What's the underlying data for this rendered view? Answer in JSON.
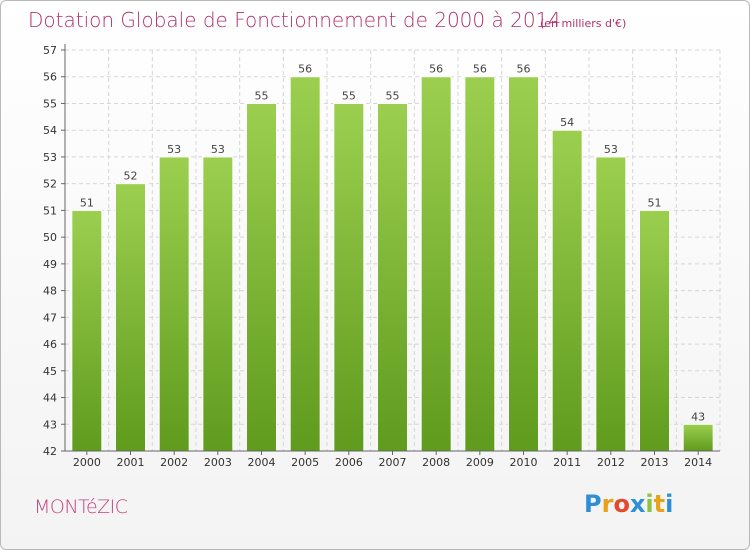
{
  "title": "Dotation Globale de Fonctionnement de 2000 à 2014",
  "subtitle": "(en milliers d'€)",
  "commune": "MONTéZIC",
  "logo": {
    "text": "Proxiti",
    "letter_colors": [
      "#2f8fd6",
      "#e8a21a",
      "#e5492b",
      "#2f8fd6",
      "#8bc53f",
      "#e8a21a",
      "#2f8fd6"
    ]
  },
  "colors": {
    "bar_top": "#9ccf4f",
    "bar_bottom": "#5f9b1d",
    "grid": "#d6d6d6",
    "axis": "#666666",
    "title": "#b0306b"
  },
  "chart_data": {
    "type": "bar",
    "title": "Dotation Globale de Fonctionnement de 2000 à 2014",
    "xlabel": "",
    "ylabel": "(en milliers d'€)",
    "categories": [
      "2000",
      "2001",
      "2002",
      "2003",
      "2004",
      "2005",
      "2006",
      "2007",
      "2008",
      "2009",
      "2010",
      "2011",
      "2012",
      "2013",
      "2014"
    ],
    "values": [
      51,
      52,
      53,
      53,
      55,
      56,
      55,
      55,
      56,
      56,
      56,
      54,
      53,
      51,
      43
    ],
    "ylim": [
      42,
      57
    ],
    "yticks": [
      42,
      43,
      44,
      45,
      46,
      47,
      48,
      49,
      50,
      51,
      52,
      53,
      54,
      55,
      56,
      57
    ],
    "grid": true,
    "legend": "none"
  }
}
